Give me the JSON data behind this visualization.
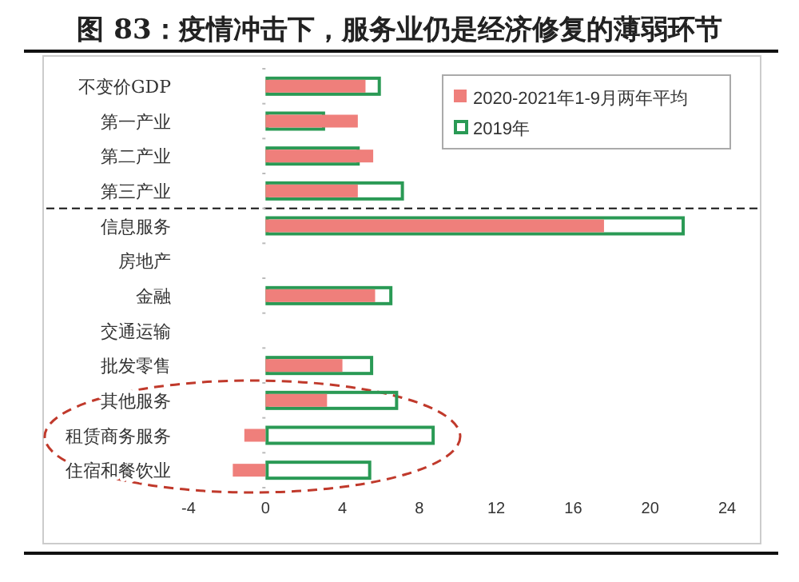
{
  "chart_data": {
    "type": "bar",
    "orientation": "horizontal",
    "title": "图 83：疫情冲击下，服务业仍是经济修复的薄弱环节",
    "categories": [
      "不变价GDP",
      "第一产业",
      "第二产业",
      "第三产业",
      "信息服务",
      "房地产",
      "金融",
      "交通运输",
      "批发零售",
      "其他服务",
      "租赁商务服务",
      "住宿和餐饮业"
    ],
    "series": [
      {
        "name": "2020-2021年1-9月两年平均",
        "color": "#ef7f7b",
        "values": [
          5.2,
          4.8,
          5.6,
          4.8,
          17.6,
          null,
          5.7,
          null,
          4.0,
          3.2,
          -1.1,
          -1.7
        ]
      },
      {
        "name": "2019年",
        "color": "#2a9a55",
        "values": [
          6.0,
          3.1,
          4.9,
          7.2,
          21.8,
          null,
          6.6,
          null,
          5.6,
          6.9,
          8.8,
          5.5
        ]
      }
    ],
    "xlim": [
      -4,
      24
    ],
    "xticks": [
      -4,
      0,
      4,
      8,
      12,
      16,
      20,
      24
    ],
    "legend": "top right",
    "grid": false
  }
}
